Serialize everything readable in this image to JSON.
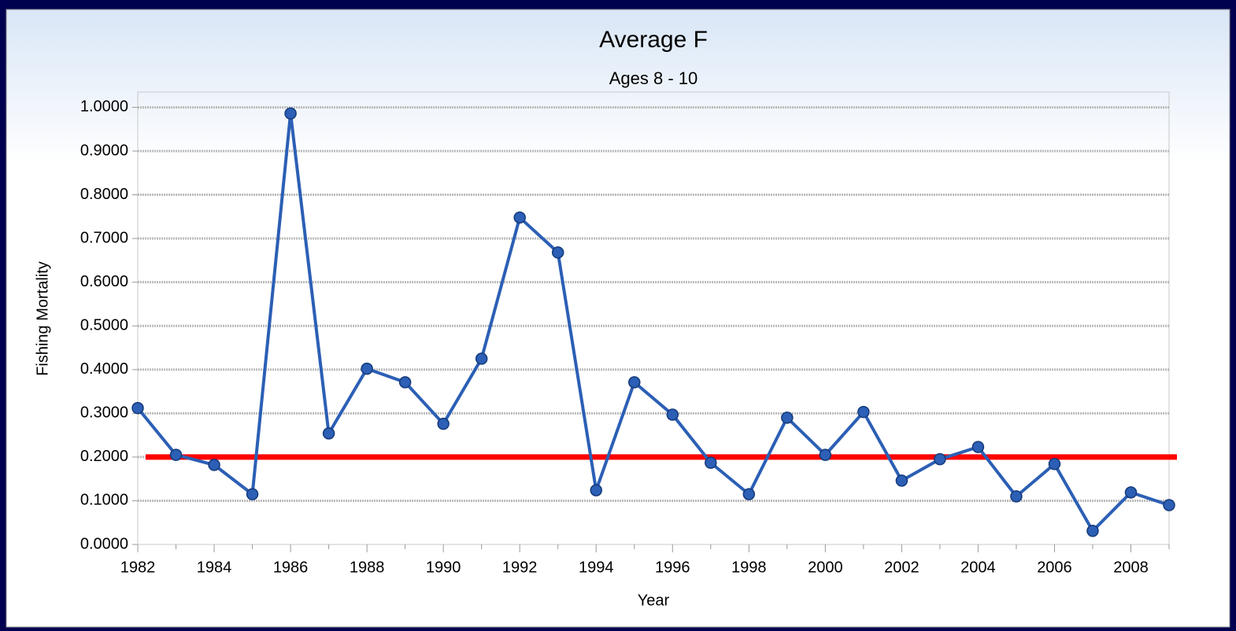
{
  "chart_data": {
    "type": "line",
    "title": "Average F",
    "subtitle": "Ages 8 - 10",
    "x_label": "Year",
    "y_label": "Fishing Mortality",
    "x": [
      1982,
      1983,
      1984,
      1985,
      1986,
      1987,
      1988,
      1989,
      1990,
      1991,
      1992,
      1993,
      1994,
      1995,
      1996,
      1997,
      1998,
      1999,
      2000,
      2001,
      2002,
      2003,
      2004,
      2005,
      2006,
      2007,
      2008,
      2009
    ],
    "series": [
      {
        "color": "#2c5fb5",
        "values": [
          0.312,
          0.205,
          0.182,
          0.115,
          0.986,
          0.254,
          0.402,
          0.371,
          0.276,
          0.425,
          0.748,
          0.668,
          0.124,
          0.371,
          0.297,
          0.187,
          0.115,
          0.29,
          0.205,
          0.303,
          0.146,
          0.195,
          0.223,
          0.11,
          0.184,
          0.031,
          0.119,
          0.09
        ]
      }
    ],
    "reference_line": {
      "value": 0.2,
      "color": "#ff0000"
    },
    "xlim": [
      1982,
      2009
    ],
    "xticks": [
      1982,
      1984,
      1986,
      1988,
      1990,
      1992,
      1994,
      1996,
      1998,
      2000,
      2002,
      2004,
      2006,
      2008
    ],
    "ylim": [
      0,
      1.035
    ],
    "yticks": [
      {
        "value": 0,
        "label": "0.0000"
      },
      {
        "value": 0.1,
        "label": "0.1000"
      },
      {
        "value": 0.2,
        "label": "0.2000"
      },
      {
        "value": 0.3,
        "label": "0.3000"
      },
      {
        "value": 0.4,
        "label": "0.4000"
      },
      {
        "value": 0.5,
        "label": "0.5000"
      },
      {
        "value": 0.6,
        "label": "0.6000"
      },
      {
        "value": 0.7,
        "label": "0.7000"
      },
      {
        "value": 0.8,
        "label": "0.8000"
      },
      {
        "value": 0.9,
        "label": "0.9000"
      },
      {
        "value": 1,
        "label": "1.0000"
      }
    ],
    "grid": true
  }
}
